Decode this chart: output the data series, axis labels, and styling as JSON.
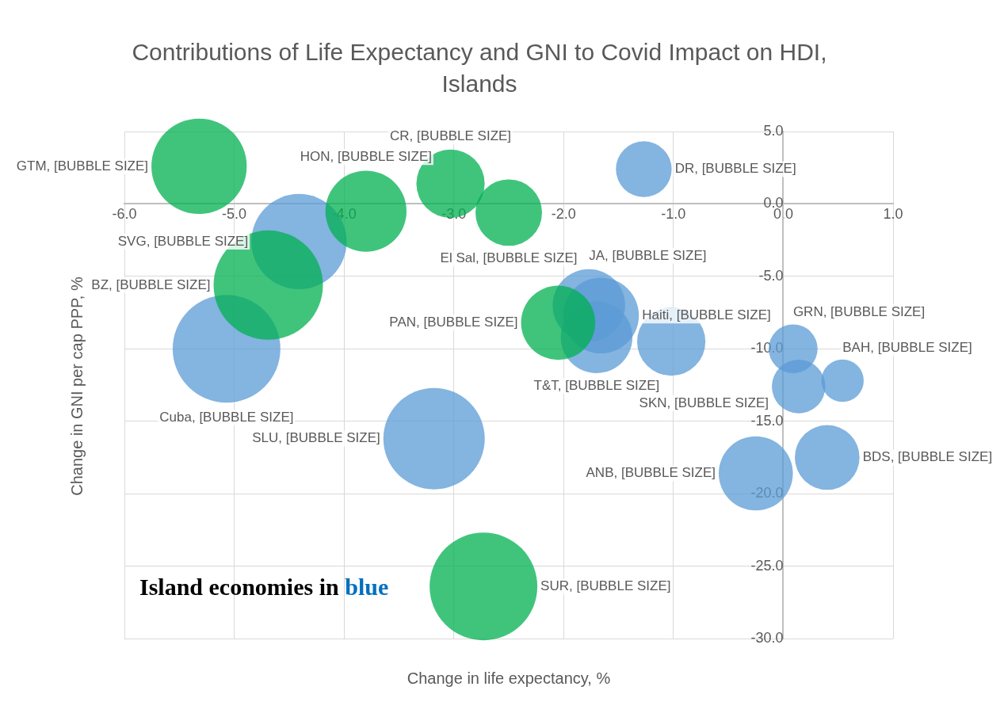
{
  "chart_data": {
    "type": "bubble",
    "title": "Contributions of Life Expectancy and GNI to Covid Impact on HDI, Islands",
    "xlabel": "Change in life expectancy, %",
    "ylabel": "Change in GNI per cap PPP, %",
    "annotations": [
      "Island economies in blue"
    ],
    "xlim": [
      -6,
      1
    ],
    "xticks": [
      {
        "value": -6,
        "label": "-6.0"
      },
      {
        "value": -5,
        "label": "-5.0"
      },
      {
        "value": -4,
        "label": "-4.0"
      },
      {
        "value": -3,
        "label": "-3.0"
      },
      {
        "value": -2,
        "label": "-2.0"
      },
      {
        "value": -1,
        "label": "-1.0"
      },
      {
        "value": 0,
        "label": "0.0"
      },
      {
        "value": 1,
        "label": "1.0"
      }
    ],
    "ylim": [
      -30,
      5
    ],
    "yticks": [
      {
        "value": 5,
        "label": "5.0"
      },
      {
        "value": 0,
        "label": "0.0"
      },
      {
        "value": -5,
        "label": "-5.0"
      },
      {
        "value": -10,
        "label": "-10.0"
      },
      {
        "value": -15,
        "label": "-15.0"
      },
      {
        "value": -20,
        "label": "-20.0"
      },
      {
        "value": -25,
        "label": "-25.0"
      },
      {
        "value": -30,
        "label": "-30.0"
      }
    ],
    "grid": true,
    "legend": false,
    "series": [
      {
        "color": "#00b050",
        "x": [
          -5.32,
          -3.8,
          -3.03,
          -2.5,
          -4.69,
          -2.05,
          -2.73
        ],
        "values": [
          2.6,
          -0.5,
          1.4,
          -0.6,
          -5.6,
          -8.2,
          -26.4
        ],
        "sizes": [
          0.76,
          0.55,
          0.39,
          0.37,
          1,
          0.46,
          0.97
        ],
        "value_labels": [
          "GTM, [BUBBLE SIZE]",
          "HON, [BUBBLE SIZE]",
          "CR, [BUBBLE SIZE]",
          "El Sal, [BUBBLE SIZE]",
          "BZ, [BUBBLE SIZE]",
          "PAN, [BUBBLE SIZE]",
          "SUR, [BUBBLE SIZE]"
        ]
      },
      {
        "color": "#5b9bd5",
        "x": [
          -1.27,
          -4.41,
          -5.07,
          -3.18,
          -1.77,
          -1.66,
          -1.7,
          -1.02,
          0.09,
          0.54,
          0.14,
          -0.25,
          0.4
        ],
        "values": [
          2.4,
          -2.6,
          -10,
          -16.2,
          -7,
          -7.7,
          -9.2,
          -9.5,
          -10,
          -12.2,
          -12.6,
          -18.6,
          -17.5
        ],
        "sizes": [
          0.26,
          0.76,
          0.97,
          0.86,
          0.44,
          0.48,
          0.43,
          0.39,
          0.2,
          0.15,
          0.24,
          0.46,
          0.35
        ],
        "value_labels": [
          "DR, [BUBBLE SIZE]",
          "SVG, [BUBBLE SIZE]",
          "Cuba, [BUBBLE SIZE]",
          "SLU, [BUBBLE SIZE]",
          "JA, [BUBBLE SIZE]",
          "Haiti, [BUBBLE SIZE]",
          "T&T, [BUBBLE SIZE]",
          null,
          "GRN, [BUBBLE SIZE]",
          "BAH, [BUBBLE SIZE]",
          "SKN, [BUBBLE SIZE]",
          "ANB, [BUBBLE SIZE]",
          "BDS, [BUBBLE SIZE]"
        ]
      }
    ]
  }
}
